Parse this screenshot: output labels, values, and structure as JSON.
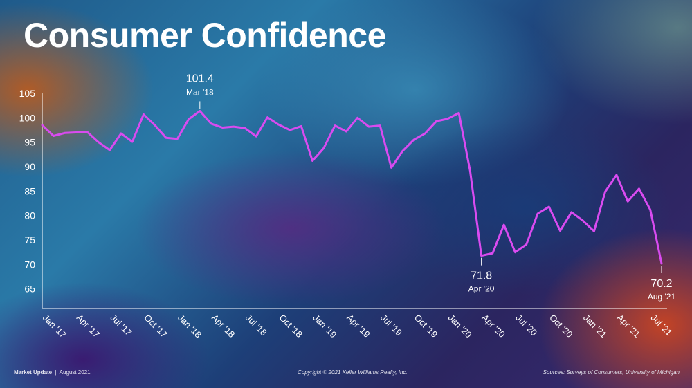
{
  "title": "Consumer Confidence",
  "footer": {
    "left_bold": "Market Update",
    "left_sep": "|",
    "left_date": "August 2021",
    "center": "Copyright © 2021 Keller Williams Realty, Inc.",
    "right": "Sources: Surveys of Consumers, University of Michigan"
  },
  "colors": {
    "line": "#d94bf0",
    "axis": "#ffffff",
    "text": "#ffffff"
  },
  "chart_data": {
    "type": "line",
    "title": "Consumer Confidence",
    "xlabel": "",
    "ylabel": "",
    "ylim": [
      61,
      105
    ],
    "y_ticks": [
      "105",
      "100",
      "95",
      "90",
      "85",
      "80",
      "75",
      "70",
      "65"
    ],
    "x_tick_labels": [
      "Jan '17",
      "Apr '17",
      "Jul '17",
      "Oct '17",
      "Jan '18",
      "Apr '18",
      "Jul '18",
      "Oct '18",
      "Jan '19",
      "Apr '19",
      "Jul '19",
      "Oct '19",
      "Jan '20",
      "Apr '20",
      "Jul '20",
      "Oct '20",
      "Jan '21",
      "Apr '21",
      "Jul '21"
    ],
    "grid": false,
    "series": [
      {
        "values": [
          98.5,
          96.3,
          96.9,
          97.0,
          97.1,
          95.0,
          93.4,
          96.8,
          95.1,
          100.7,
          98.5,
          95.9,
          95.7,
          99.7,
          101.4,
          98.8,
          98.0,
          98.2,
          97.9,
          96.2,
          100.1,
          98.6,
          97.5,
          98.3,
          91.2,
          93.8,
          98.4,
          97.2,
          100.0,
          98.2,
          98.4,
          89.8,
          93.2,
          95.5,
          96.8,
          99.3,
          99.8,
          101.0,
          89.1,
          71.8,
          72.3,
          78.1,
          72.5,
          74.1,
          80.4,
          81.8,
          76.9,
          80.7,
          79.0,
          76.8,
          84.9,
          88.3,
          82.9,
          85.5,
          81.2,
          70.2
        ]
      }
    ],
    "annotations": [
      {
        "value": "101.4",
        "label": "Mar '18"
      },
      {
        "value": "71.8",
        "label": "Apr '20"
      },
      {
        "value": "70.2",
        "label": "Aug '21"
      }
    ]
  }
}
